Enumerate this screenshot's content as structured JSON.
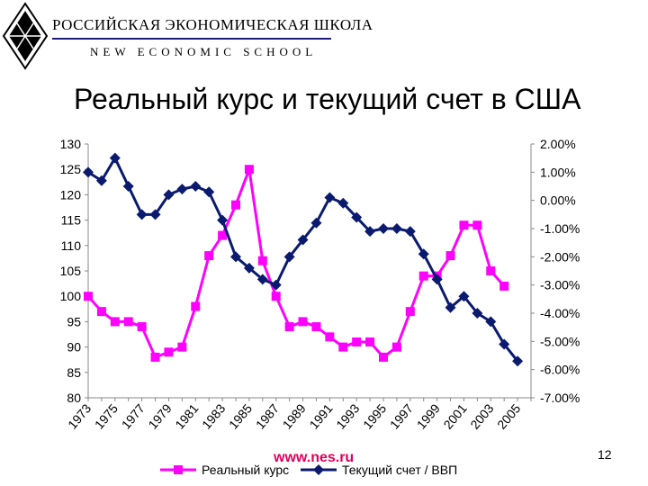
{
  "logo": {
    "title_ru": "РОССИЙСКАЯ ЭКОНОМИЧЕСКАЯ ШКОЛА",
    "title_en": "NEW ECONOMIC SCHOOL"
  },
  "slide": {
    "title": "Реальный курс и текущий счет в США",
    "url": "www.nes.ru",
    "page_number": "12"
  },
  "colors": {
    "series_rer": "#ff00ff",
    "series_ca": "#0a1a6e",
    "logo_line": "#1b1f7a"
  },
  "chart_data": {
    "type": "line",
    "x": [
      1973,
      1974,
      1975,
      1976,
      1977,
      1978,
      1979,
      1980,
      1981,
      1982,
      1983,
      1984,
      1985,
      1986,
      1987,
      1988,
      1989,
      1990,
      1991,
      1992,
      1993,
      1994,
      1995,
      1996,
      1997,
      1998,
      1999,
      2000,
      2001,
      2002,
      2003,
      2004,
      2005,
      2006
    ],
    "x_tick_labels": [
      "1973",
      "1975",
      "1977",
      "1979",
      "1981",
      "1983",
      "1985",
      "1987",
      "1989",
      "1991",
      "1993",
      "1995",
      "1997",
      "1999",
      "2001",
      "2003",
      "2005"
    ],
    "y_left": {
      "min": 80,
      "max": 130,
      "step": 5,
      "ticks": [
        "80",
        "85",
        "90",
        "95",
        "100",
        "105",
        "110",
        "115",
        "120",
        "125",
        "130"
      ]
    },
    "y_right": {
      "min": -7,
      "max": 2,
      "step": 1,
      "ticks": [
        "-7.00%",
        "-6.00%",
        "-5.00%",
        "-4.00%",
        "-3.00%",
        "-2.00%",
        "-1.00%",
        "0.00%",
        "1.00%",
        "2.00%"
      ]
    },
    "grid": "none",
    "legend_position": "bottom",
    "series": [
      {
        "name": "Реальный курс",
        "axis": "left",
        "marker": "square",
        "values": [
          100,
          97,
          95,
          95,
          94,
          88,
          89,
          90,
          98,
          108,
          112,
          118,
          125,
          107,
          100,
          94,
          95,
          94,
          92,
          90,
          91,
          91,
          88,
          90,
          97,
          104,
          104,
          108,
          114,
          114,
          105,
          102,
          null,
          null
        ]
      },
      {
        "name": "Текущий счет / ВВП",
        "axis": "right",
        "marker": "diamond",
        "values": [
          1.0,
          0.7,
          1.5,
          0.5,
          -0.5,
          -0.5,
          0.2,
          0.4,
          0.5,
          0.3,
          -0.7,
          -2.0,
          -2.4,
          -2.8,
          -3.0,
          -2.0,
          -1.4,
          -0.8,
          0.1,
          -0.1,
          -0.6,
          -1.1,
          -1.0,
          -1.0,
          -1.1,
          -1.9,
          -2.8,
          -3.8,
          -3.4,
          -4.0,
          -4.3,
          -5.1,
          -5.7,
          null
        ]
      }
    ]
  }
}
